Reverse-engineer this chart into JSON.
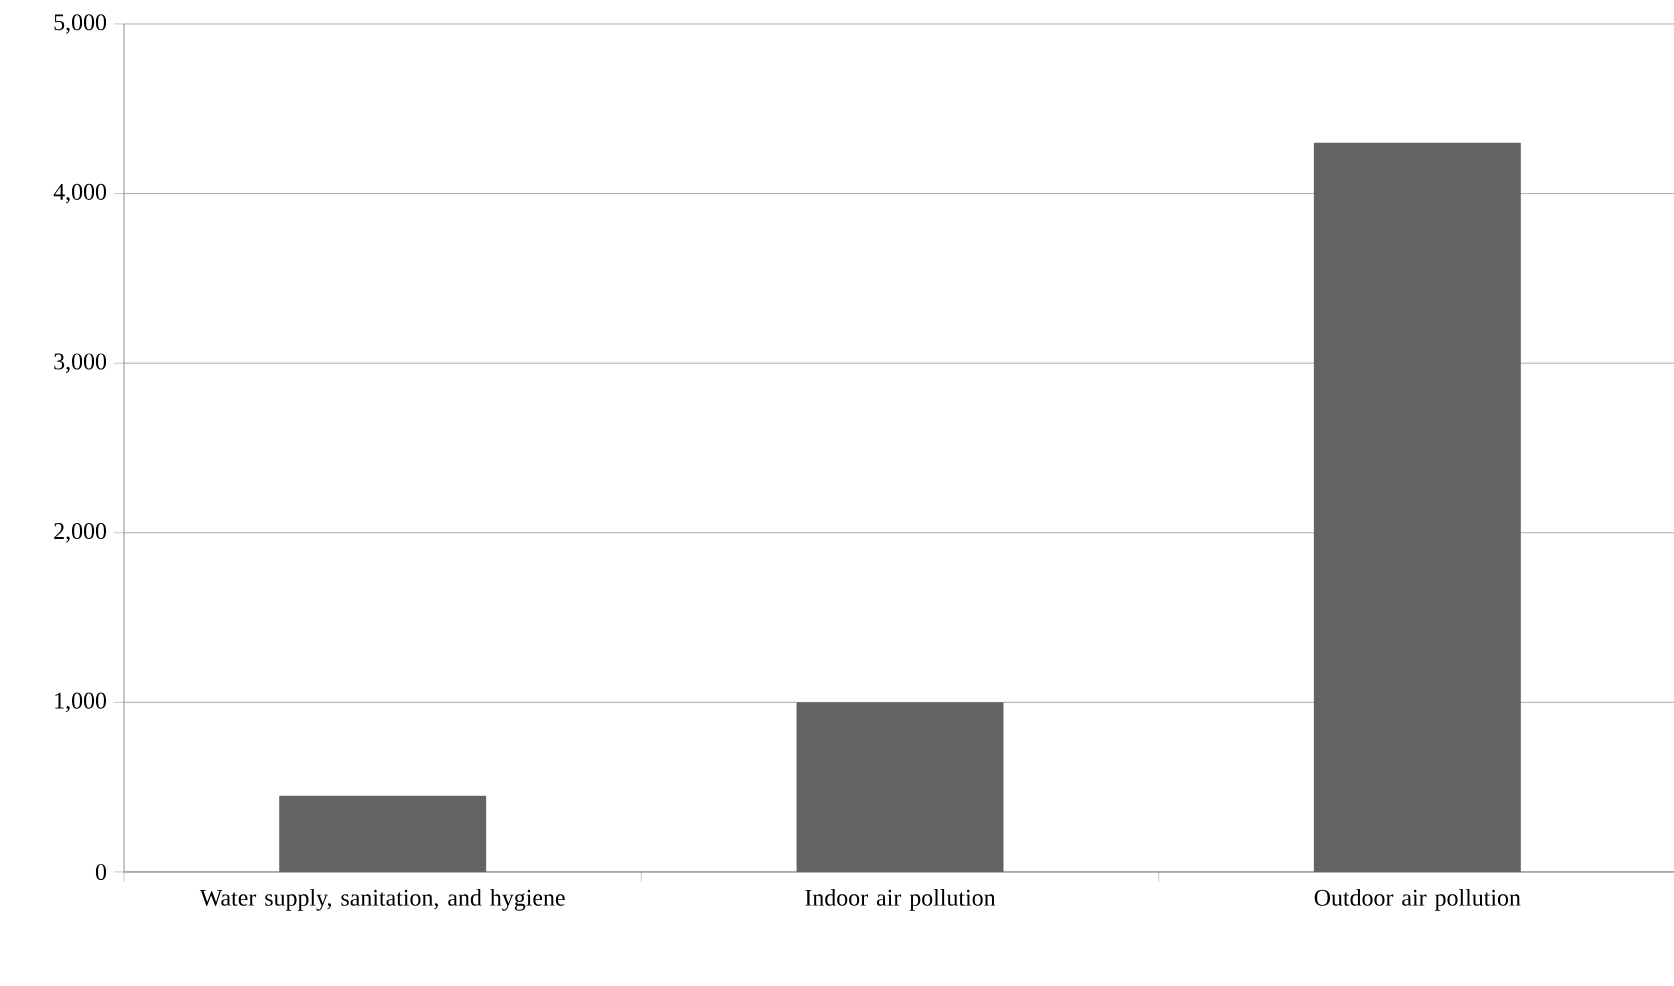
{
  "chart_data": {
    "type": "bar",
    "categories": [
      "Water supply, sanitation, and hygiene",
      "Indoor air pollution",
      "Outdoor air pollution"
    ],
    "values": [
      450,
      1000,
      4300
    ],
    "color": "#636363",
    "ylim": [
      0,
      5000
    ],
    "yticks": [
      0,
      {
        "value": 1000,
        "label": "1,000"
      },
      {
        "value": 2000,
        "label": "2,000"
      },
      {
        "value": 3000,
        "label": "3,000"
      },
      {
        "value": 4000,
        "label": "4,000"
      },
      {
        "value": 5000,
        "label": "5,000"
      }
    ],
    "grid": "y"
  }
}
